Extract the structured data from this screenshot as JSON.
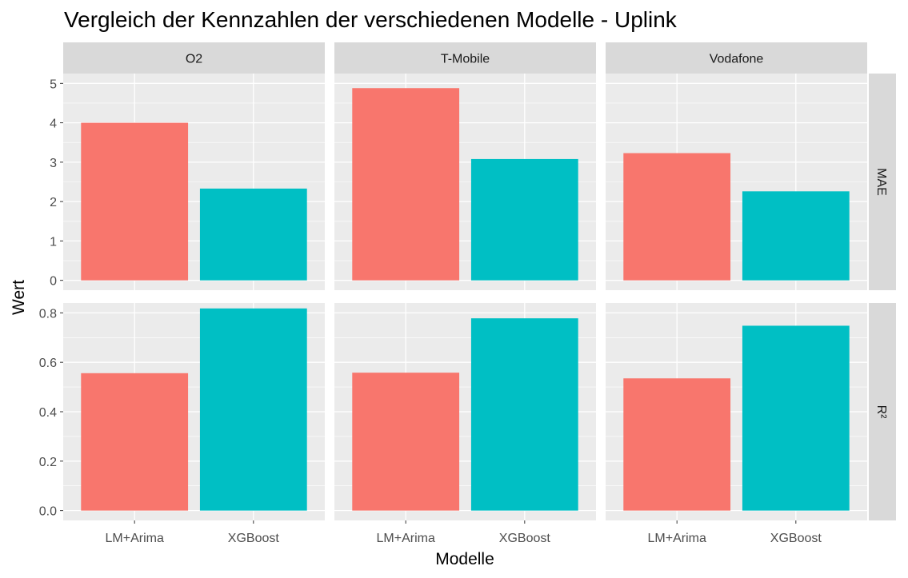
{
  "chart_data": {
    "type": "bar",
    "title": "Vergleich der Kennzahlen der verschiedenen Modelle - Uplink",
    "xlabel": "Modelle",
    "ylabel": "Wert",
    "categories": [
      "LM+Arima",
      "XGBoost"
    ],
    "bar_colors": [
      "#F8766D",
      "#00BFC4"
    ],
    "facet_columns": [
      "O2",
      "T-Mobile",
      "Vodafone"
    ],
    "facet_rows": [
      {
        "label": "MAE",
        "ylim": [
          0,
          5
        ],
        "yticks": [
          0,
          1,
          2,
          3,
          4,
          5
        ],
        "ytick_labels": [
          "0",
          "1",
          "2",
          "3",
          "4",
          "5"
        ]
      },
      {
        "label": "R²",
        "ylim": [
          0,
          0.8
        ],
        "yticks": [
          0.0,
          0.2,
          0.4,
          0.6,
          0.8
        ],
        "ytick_labels": [
          "0.0",
          "0.2",
          "0.4",
          "0.6",
          "0.8"
        ]
      }
    ],
    "values": {
      "MAE": {
        "O2": [
          4.0,
          2.33
        ],
        "T-Mobile": [
          4.88,
          3.08
        ],
        "Vodafone": [
          3.23,
          2.26
        ]
      },
      "R²": {
        "O2": [
          0.556,
          0.818
        ],
        "T-Mobile": [
          0.558,
          0.778
        ],
        "Vodafone": [
          0.535,
          0.748
        ]
      }
    },
    "grid": true,
    "legend": "none"
  }
}
